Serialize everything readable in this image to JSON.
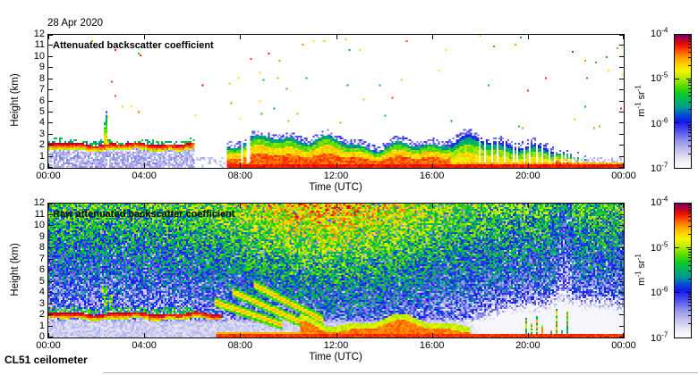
{
  "figure": {
    "date_label": "28 Apr 2020",
    "footer": "CL51 ceilometer",
    "time_axis_label": "Time (UTC)",
    "height_axis_label": "Height (km)",
    "x_tick_labels": [
      "00:00",
      "04:00",
      "08:00",
      "12:00",
      "16:00",
      "20:00",
      "00:00"
    ],
    "x_tick_hours": [
      0,
      4,
      8,
      12,
      16,
      20,
      24
    ],
    "y_tick_values": [
      0,
      1,
      2,
      3,
      4,
      5,
      6,
      7,
      8,
      9,
      10,
      11,
      12
    ],
    "colorbar": {
      "tick_labels": [
        {
          "base": "10",
          "exp": "-4"
        },
        {
          "base": "10",
          "exp": "-5"
        },
        {
          "base": "10",
          "exp": "-6"
        },
        {
          "base": "10",
          "exp": "-7"
        }
      ],
      "unit_parts": [
        {
          "base": "m",
          "exp": "-1"
        },
        {
          "base": "sr",
          "exp": "-1"
        }
      ]
    }
  },
  "colormap_stops": [
    [
      0.0,
      "#ffffff"
    ],
    [
      0.05,
      "#efeff9"
    ],
    [
      0.13,
      "#c3c3ef"
    ],
    [
      0.21,
      "#8e8ee9"
    ],
    [
      0.29,
      "#4444ee"
    ],
    [
      0.35,
      "#1515f0"
    ],
    [
      0.4,
      "#0050cf"
    ],
    [
      0.45,
      "#009595"
    ],
    [
      0.5,
      "#00b266"
    ],
    [
      0.56,
      "#0fca25"
    ],
    [
      0.62,
      "#63dc00"
    ],
    [
      0.68,
      "#bcec00"
    ],
    [
      0.73,
      "#f4f400"
    ],
    [
      0.78,
      "#ffd000"
    ],
    [
      0.83,
      "#ff9a00"
    ],
    [
      0.88,
      "#ff4f00"
    ],
    [
      0.92,
      "#ee1500"
    ],
    [
      0.955,
      "#c40022"
    ],
    [
      0.98,
      "#9c0048"
    ],
    [
      1.0,
      "#740063"
    ]
  ],
  "chart_data": [
    {
      "type": "heatmap",
      "title": "Attenuated backscatter coefficient",
      "xlabel": "Time (UTC)",
      "ylabel": "Height (km)",
      "x_range_hours": [
        0,
        24
      ],
      "y_range_km": [
        0,
        12
      ],
      "value_scale": "log10",
      "value_range": [
        "1e-7",
        "1e-4"
      ],
      "value_unit": "m^-1 sr^-1",
      "seed": 7,
      "features": {
        "residual_layer": {
          "t_end": 6.1,
          "h_center": 2.0,
          "core_v": 0.96,
          "body_v": 0.9,
          "sub_speckle_top": 1.56,
          "sub_speckle_v": 0.16,
          "top_speckle_to": 2.5,
          "top_speckle_v": 0.5
        },
        "plume": {
          "t": 2.4,
          "t_sigma": 0.06,
          "h_base": 2.1,
          "h_top": 5.2,
          "v_base": 0.8,
          "v_top": 0.38
        },
        "clear_gap": {
          "t0": 6.1,
          "t1": 7.45,
          "h_max": 0.9,
          "speckle_v": 0.15,
          "density": 0.22
        },
        "convective": {
          "t0": 7.45,
          "h_top_mean": 2.25,
          "decay_after": 17.5,
          "core_v": 0.87,
          "mid_v": 0.77,
          "upper_v": 0.62,
          "edge_v": 0.47,
          "fringe_v": 0.27,
          "bottom_line_v": 0.92,
          "bottom_line_h": 0.3,
          "late_fade_t": 21.5
        },
        "sparse_dots": {
          "count": 70,
          "h_min": 3.5,
          "v_min": 0.45,
          "v_max": 0.95
        }
      }
    },
    {
      "type": "heatmap",
      "title": "Raw attenuated backscatter coefficient",
      "xlabel": "Time (UTC)",
      "ylabel": "Height (km)",
      "x_range_hours": [
        0,
        24
      ],
      "y_range_km": [
        0,
        12
      ],
      "value_scale": "log10",
      "value_range": [
        "1e-7",
        "1e-4"
      ],
      "value_unit": "m^-1 sr^-1",
      "seed": 11,
      "features": {
        "noise": {
          "base": 0.13,
          "height_gain": 0.44,
          "height_exp": 0.95,
          "day_gain": 0.24,
          "day_center": 11.8,
          "day_sigma": 4.3,
          "jitter": 0.36,
          "white_speck_p": 0.05,
          "clean_h": 1.3,
          "clean_v": 0.11
        },
        "white_holes": [
          {
            "t": 22.2,
            "t_sigma": 2.5,
            "h": 1.1,
            "h_sigma": 1.8,
            "amp": 0.62
          },
          {
            "t": 19.3,
            "t_sigma": 1.2,
            "h": 1.3,
            "h_sigma": 1.2,
            "amp": 0.3
          }
        ],
        "blue_column": {
          "t": 21.5,
          "t_sigma": 0.35,
          "amp": 0.14
        },
        "residual_layer": {
          "t_end": 7.2,
          "h_center": 2.0,
          "core_v": 0.96,
          "body_v": 0.91,
          "top_speckle_to": 2.7,
          "top_speckle_v": 0.55,
          "top_speckle_t_end": 6.2
        },
        "plumes": [
          {
            "t": 2.35,
            "h0": 2.7,
            "h1": 4.6
          },
          {
            "t": 2.62,
            "h0": 2.7,
            "h1": 3.9
          }
        ],
        "descending_streaks": [
          [
            6.9,
            3.2,
            9.8,
            1.1
          ],
          [
            7.7,
            4.1,
            10.6,
            1.3
          ],
          [
            8.6,
            4.7,
            11.5,
            1.5
          ]
        ],
        "daytime_band": {
          "t0": 10.5,
          "t1": 17.6,
          "h_mean": 0.95,
          "core_v": 0.85,
          "edge_v": 0.7
        },
        "bottom_line": {
          "t0": 7.0,
          "v": 0.9,
          "h": 0.25
        },
        "clutter_columns": {
          "t0": 17.8,
          "t1": 23.7,
          "v_min": 0.45,
          "v_max": 0.85,
          "h_max": 2.5
        }
      }
    }
  ]
}
